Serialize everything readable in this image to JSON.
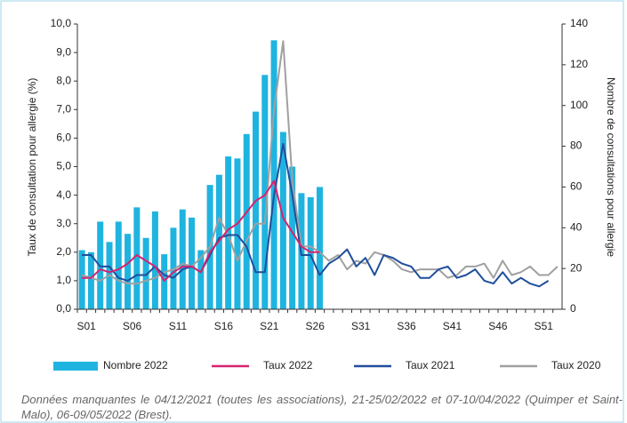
{
  "chart_data": {
    "type": "bar_line",
    "ylabel": "Taux de consultation pour allergie (%)",
    "y2label": "Nombre de consultations pour allergie",
    "categories": [
      "S01",
      null,
      null,
      null,
      null,
      "S06",
      null,
      null,
      null,
      null,
      "S11",
      null,
      null,
      null,
      null,
      "S16",
      null,
      null,
      null,
      null,
      "S21",
      null,
      null,
      null,
      null,
      "S26",
      null,
      null,
      null,
      null,
      "S31",
      null,
      null,
      null,
      null,
      "S36",
      null,
      null,
      null,
      null,
      "S41",
      null,
      null,
      null,
      null,
      "S46",
      null,
      null,
      null,
      null,
      "S51",
      null,
      null
    ],
    "ylim": [
      0,
      10
    ],
    "yticks": [
      {
        "value": 0,
        "label": "0,0"
      },
      {
        "value": 1,
        "label": "1,0"
      },
      {
        "value": 2,
        "label": "2,0"
      },
      {
        "value": 3,
        "label": "3,0"
      },
      {
        "value": 4,
        "label": "4,0"
      },
      {
        "value": 5,
        "label": "5,0"
      },
      {
        "value": 6,
        "label": "6,0"
      },
      {
        "value": 7,
        "label": "7,0"
      },
      {
        "value": 8,
        "label": "8,0"
      },
      {
        "value": 9,
        "label": "9,0"
      },
      {
        "value": 10,
        "label": "10,0"
      }
    ],
    "y2lim": [
      0,
      140
    ],
    "y2ticks": [
      0,
      20,
      40,
      60,
      80,
      100,
      120,
      140
    ],
    "series": [
      {
        "name": "Nombre 2022",
        "type": "bar",
        "axis": "y2",
        "color": "#1fb4e0",
        "values": [
          29,
          28,
          43,
          33,
          43,
          37,
          50,
          35,
          48,
          27,
          40,
          49,
          45,
          29,
          61,
          66,
          75,
          74,
          86,
          97,
          115,
          132,
          87,
          70,
          57,
          55,
          60,
          null,
          null,
          null,
          null,
          null,
          null,
          null,
          null,
          null,
          null,
          null,
          null,
          null,
          null,
          null,
          null,
          null,
          null,
          null,
          null,
          null,
          null,
          null,
          null,
          null,
          null
        ]
      },
      {
        "name": "Taux 2022",
        "type": "line",
        "color": "#d6246e",
        "values": [
          1.1,
          1.1,
          1.4,
          1.3,
          1.4,
          1.6,
          1.9,
          1.7,
          1.5,
          1.0,
          1.3,
          1.5,
          1.5,
          1.3,
          2.0,
          2.4,
          2.8,
          3.0,
          3.4,
          3.8,
          4.0,
          4.5,
          3.2,
          2.7,
          2.2,
          2.0,
          2.0,
          null,
          null,
          null,
          null,
          null,
          null,
          null,
          null,
          null,
          null,
          null,
          null,
          null,
          null,
          null,
          null,
          null,
          null,
          null,
          null,
          null,
          null,
          null,
          null,
          null,
          null
        ]
      },
      {
        "name": "Taux 2021",
        "type": "line",
        "color": "#1f4e9c",
        "values": [
          1.9,
          1.9,
          1.5,
          1.5,
          1.1,
          1.0,
          1.2,
          1.2,
          1.5,
          1.2,
          1.1,
          1.4,
          1.5,
          1.3,
          1.9,
          2.5,
          2.6,
          2.6,
          2.2,
          1.3,
          1.3,
          4.0,
          5.8,
          4.0,
          1.9,
          1.9,
          1.2,
          1.6,
          1.8,
          2.1,
          1.5,
          1.8,
          1.2,
          1.9,
          1.8,
          1.6,
          1.5,
          1.1,
          1.1,
          1.4,
          1.5,
          1.1,
          1.2,
          1.4,
          1.0,
          0.9,
          1.3,
          0.9,
          1.1,
          0.9,
          0.8,
          1.0,
          null
        ]
      },
      {
        "name": "Taux 2020",
        "type": "line",
        "color": "#a0a0a0",
        "values": [
          1.2,
          1.1,
          1.0,
          1.2,
          1.0,
          0.9,
          0.9,
          1.0,
          1.1,
          1.3,
          1.4,
          1.6,
          1.5,
          1.8,
          2.2,
          3.2,
          2.6,
          1.7,
          2.4,
          3.0,
          3.0,
          7.0,
          9.4,
          4.5,
          2.2,
          2.2,
          2.0,
          1.7,
          1.9,
          1.4,
          1.7,
          1.6,
          2.0,
          1.9,
          1.7,
          1.4,
          1.3,
          1.4,
          1.4,
          1.4,
          1.1,
          1.2,
          1.5,
          1.5,
          1.6,
          1.1,
          1.7,
          1.2,
          1.3,
          1.5,
          1.2,
          1.2,
          1.5
        ]
      }
    ],
    "note": "Données manquantes le 04/12/2021 (toutes les associations), 21-25/02/2022 et 07-10/04/2022 (Quimper et Saint-Malo), 06-09/05/2022 (Brest)."
  }
}
